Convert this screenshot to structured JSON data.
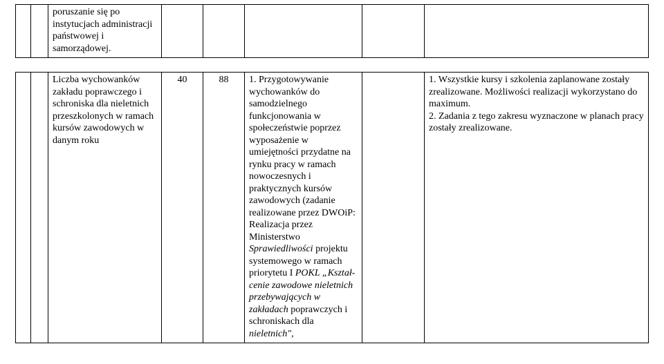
{
  "table": {
    "border_color": "#000000",
    "background_color": "#ffffff",
    "font_family": "Times New Roman",
    "font_size_pt": 11,
    "row_top": {
      "col2": "poruszanie się po instytucjach administracji państwowej i samorządowej."
    },
    "row_main": {
      "col2": "Liczba wychowanków zakładu poprawczego i schroniska dla nieletnich przeszkolonych w ramach kursów zawodowych w danym roku",
      "col3": "40",
      "col4": "88",
      "col5_prefix": "1. Przygotowywanie wychowanków do samodzielnego funkcjonowania w społeczeństwie poprzez wyposażenie w umiejętności przydatne na rynku pracy w ramach nowoczesnych i praktycznych kursów zawodowych (zadanie realizowane przez DWOiP: Realizacja przez Ministerstwo ",
      "col5_italic1": "Sprawiedliwości",
      "col5_mid": " projektu systemowego w ramach priorytetu I ",
      "col5_italic2": "POKL „Kształ-cenie zawodowe nieletnich przebywających w zakładach",
      "col5_suffix": " poprawczych i schroniskach dla ",
      "col5_italic3": "nieletnich\",",
      "col7_line1": "1. Wszystkie kursy i szkolenia zaplanowane zostały zrealizowane. Możliwości realizacji wykorzystano do maximum.",
      "col7_line2": "2. Zadania z tego zakresu wyznaczone w planach pracy zostały zrealizowane."
    }
  }
}
